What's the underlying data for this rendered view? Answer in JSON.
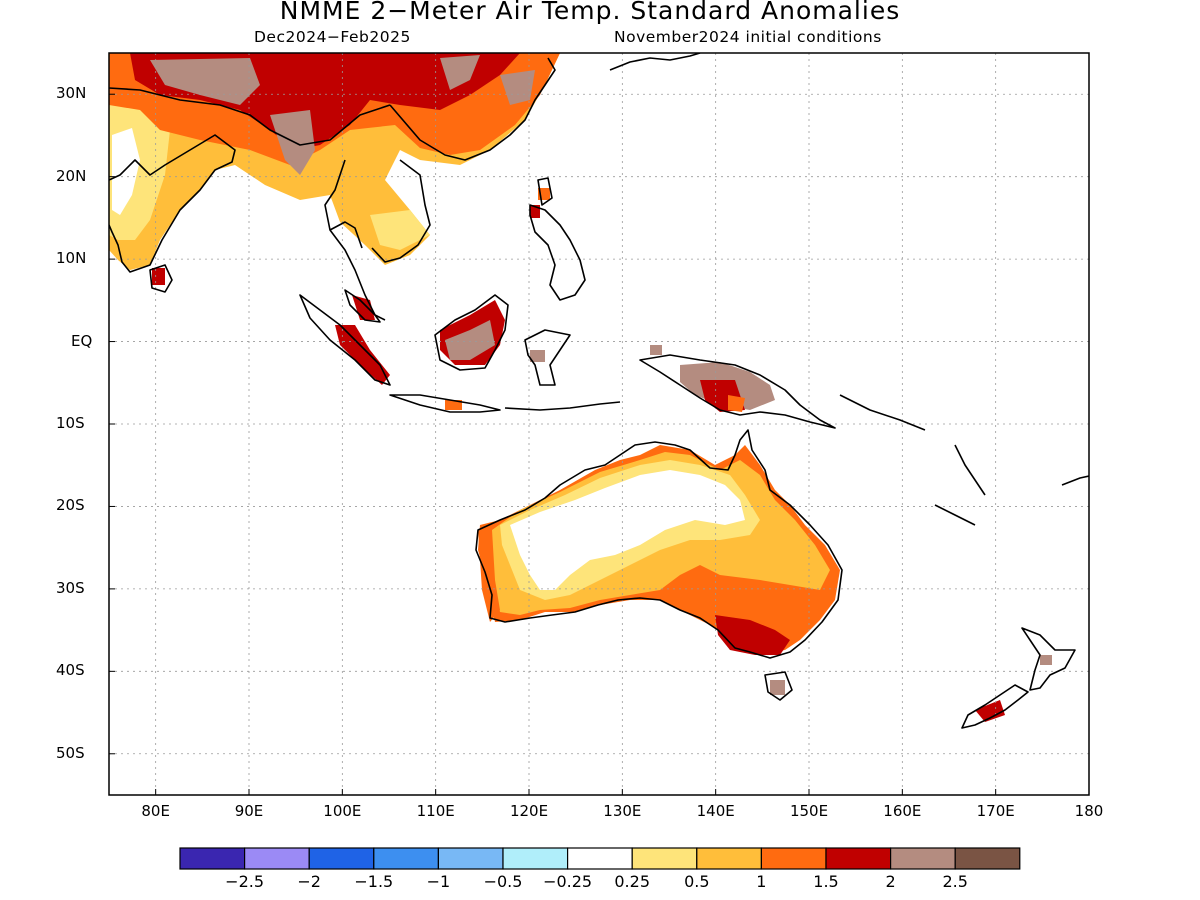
{
  "title": "NMME 2−Meter Air Temp. Standard Anomalies",
  "subtitle_left": "Dec2024−Feb2025",
  "subtitle_right": "November2024 initial conditions",
  "map": {
    "lon_range": [
      75,
      180
    ],
    "lat_range": [
      -55,
      35
    ],
    "lat_ticks": [
      {
        "lat": 30,
        "label": "30N"
      },
      {
        "lat": 20,
        "label": "20N"
      },
      {
        "lat": 10,
        "label": "10N"
      },
      {
        "lat": 0,
        "label": "EQ"
      },
      {
        "lat": -10,
        "label": "10S"
      },
      {
        "lat": -20,
        "label": "20S"
      },
      {
        "lat": -30,
        "label": "30S"
      },
      {
        "lat": -40,
        "label": "40S"
      },
      {
        "lat": -50,
        "label": "50S"
      }
    ],
    "lon_ticks": [
      {
        "lon": 80,
        "label": "80E"
      },
      {
        "lon": 90,
        "label": "90E"
      },
      {
        "lon": 100,
        "label": "100E"
      },
      {
        "lon": 110,
        "label": "110E"
      },
      {
        "lon": 120,
        "label": "120E"
      },
      {
        "lon": 130,
        "label": "130E"
      },
      {
        "lon": 140,
        "label": "140E"
      },
      {
        "lon": 150,
        "label": "150E"
      },
      {
        "lon": 160,
        "label": "160E"
      },
      {
        "lon": 170,
        "label": "170E"
      },
      {
        "lon": 180,
        "label": "180"
      }
    ],
    "grid": "dotted"
  },
  "colorbar": {
    "colors": [
      "#3a26b0",
      "#9b8af5",
      "#1f63e6",
      "#3d8ff0",
      "#78b8f5",
      "#b0eefa",
      "#ffffff",
      "#fee47a",
      "#ffbe3a",
      "#ff6b10",
      "#c00000",
      "#b48c80",
      "#7a5444"
    ],
    "labels": [
      "−2.5",
      "−2",
      "−1.5",
      "−1",
      "−0.5",
      "−0.25",
      "0.25",
      "0.5",
      "1",
      "1.5",
      "2",
      "2.5"
    ]
  },
  "regions": [
    {
      "name": "south-asia",
      "level": "0.5",
      "color": "#ffbe3a"
    },
    {
      "name": "himalaya",
      "level": "2.5",
      "color": "#b48c80"
    },
    {
      "name": "southeast-asia",
      "level": "1",
      "color": "#ffbe3a"
    },
    {
      "name": "borneo",
      "level": "2",
      "color": "#c00000"
    },
    {
      "name": "new-guinea",
      "level": "2.5",
      "color": "#b48c80"
    },
    {
      "name": "australia-interior",
      "level": "0.25",
      "color": "#ffffff"
    },
    {
      "name": "australia-southeast",
      "level": "1.5",
      "color": "#ff6b10"
    },
    {
      "name": "new-zealand-south",
      "level": "2",
      "color": "#c00000"
    }
  ]
}
